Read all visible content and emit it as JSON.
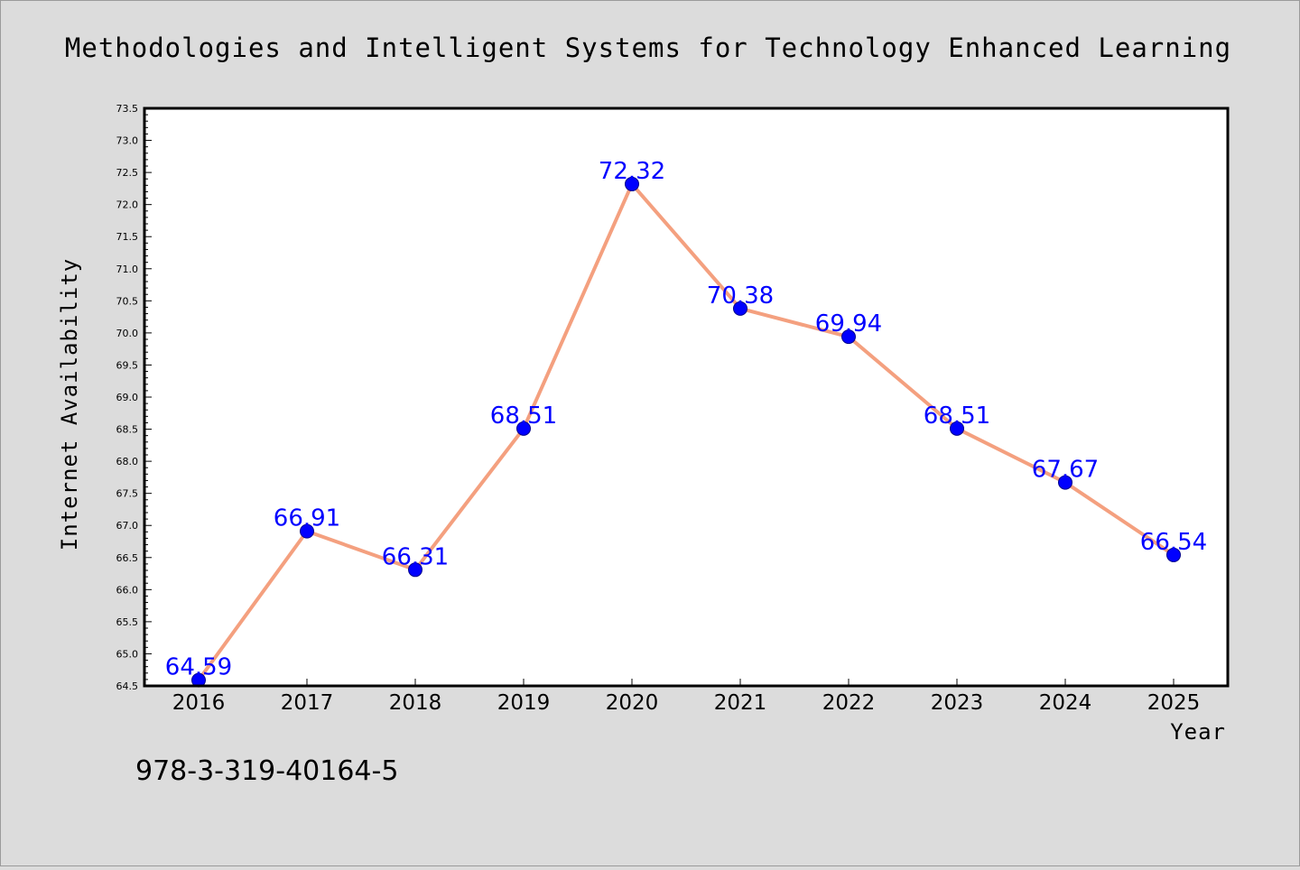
{
  "chart_data": {
    "type": "line",
    "title": "Methodologies and Intelligent Systems for Technology Enhanced Learning",
    "xlabel": "Year",
    "ylabel": "Internet Availability",
    "categories": [
      "2016",
      "2017",
      "2018",
      "2019",
      "2020",
      "2021",
      "2022",
      "2023",
      "2024",
      "2025"
    ],
    "values": [
      64.59,
      66.91,
      66.31,
      68.51,
      72.32,
      70.38,
      69.94,
      68.51,
      67.67,
      66.54
    ],
    "data_labels": [
      "64.59",
      "66.91",
      "66.31",
      "68.51",
      "72.32",
      "70.38",
      "69.94",
      "68.51",
      "67.67",
      "66.54"
    ],
    "ylim": [
      64.5,
      73.5
    ],
    "yticks": [
      "64.5",
      "65.0",
      "65.5",
      "66.0",
      "66.5",
      "67.0",
      "67.5",
      "68.0",
      "68.5",
      "69.0",
      "69.5",
      "70.0",
      "70.5",
      "71.0",
      "71.5",
      "72.0",
      "72.5",
      "73.0",
      "73.5"
    ],
    "grid": false,
    "legend": "none",
    "line_color": "#f4a07f",
    "marker_color": "#0000ff",
    "label_color": "#0000ff"
  },
  "footnote": "978-3-319-40164-5"
}
